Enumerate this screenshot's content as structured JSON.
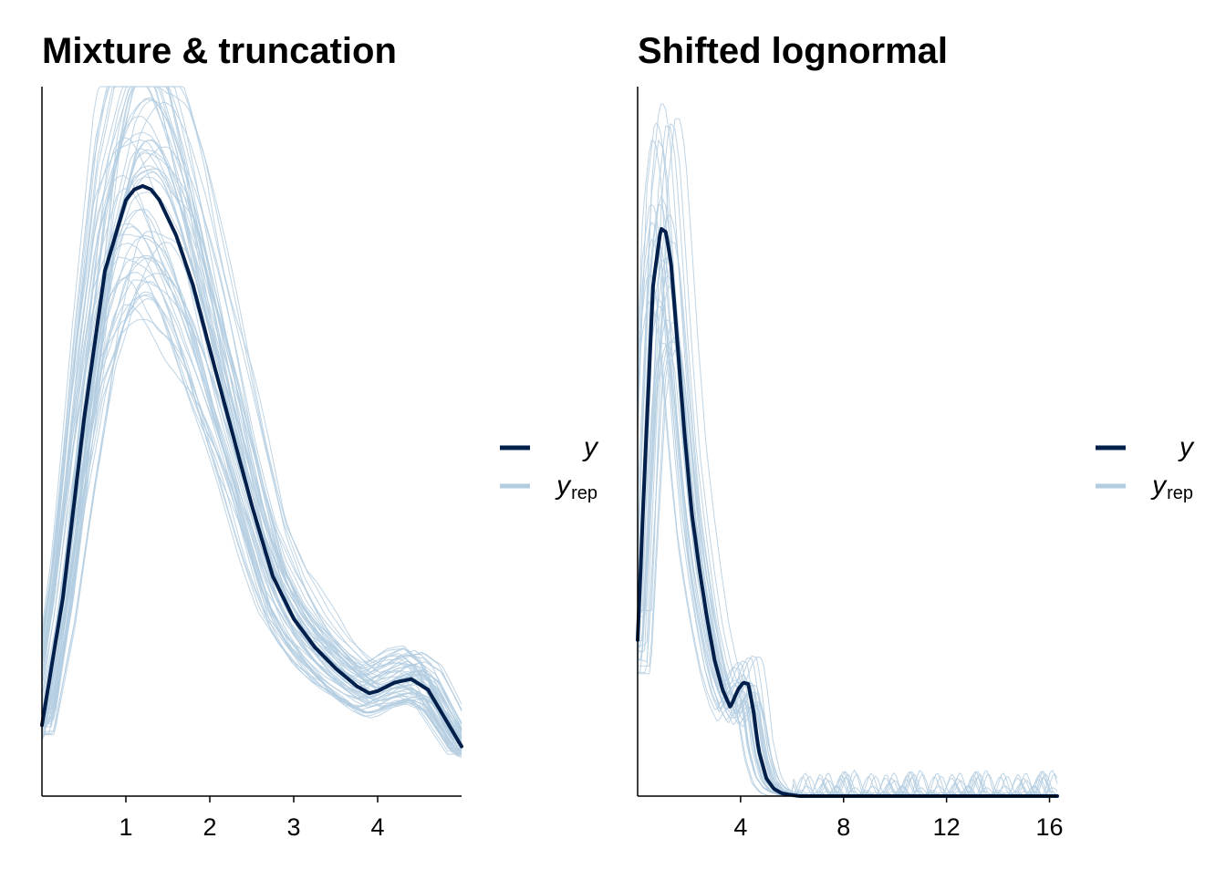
{
  "colors": {
    "y": "#011f4b",
    "yrep": "#b3cde0",
    "axis": "#000000",
    "background": "#ffffff"
  },
  "legend": {
    "entries": [
      {
        "key": "y",
        "label": "y",
        "subscript": "",
        "color": "#011f4b"
      },
      {
        "key": "yrep",
        "label": "y",
        "subscript": "rep",
        "color": "#b3cde0"
      }
    ]
  },
  "chart_data": [
    {
      "type": "line",
      "title": "Mixture & truncation",
      "xlabel": "",
      "ylabel": "",
      "xlim": [
        0,
        5
      ],
      "ylim": [
        0,
        1
      ],
      "y_axis_ticks": "none",
      "xticks": [
        1,
        2,
        3,
        4
      ],
      "grid": false,
      "legend_position": "right",
      "series": [
        {
          "key": "y",
          "x": [
            0,
            0.25,
            0.5,
            0.75,
            1.0,
            1.1,
            1.2,
            1.3,
            1.4,
            1.6,
            1.8,
            2.0,
            2.25,
            2.5,
            2.75,
            3.0,
            3.25,
            3.5,
            3.75,
            3.9,
            4.0,
            4.2,
            4.4,
            4.6,
            4.8,
            5.0
          ],
          "values": [
            0.1,
            0.28,
            0.53,
            0.74,
            0.84,
            0.855,
            0.86,
            0.855,
            0.84,
            0.79,
            0.72,
            0.63,
            0.52,
            0.41,
            0.31,
            0.25,
            0.21,
            0.18,
            0.155,
            0.145,
            0.148,
            0.16,
            0.165,
            0.15,
            0.11,
            0.07
          ]
        }
      ],
      "replicates": {
        "count": 60,
        "seed": 7,
        "color": "#b3cde0"
      }
    },
    {
      "type": "line",
      "title": "Shifted lognormal",
      "xlabel": "",
      "ylabel": "",
      "xlim": [
        0,
        16.3
      ],
      "ylim": [
        0,
        1
      ],
      "y_axis_ticks": "none",
      "xticks": [
        4,
        8,
        12,
        16
      ],
      "grid": false,
      "legend_position": "right",
      "series": [
        {
          "key": "y",
          "x": [
            0,
            0.3,
            0.6,
            0.9,
            1.1,
            1.3,
            1.5,
            1.8,
            2.1,
            2.4,
            2.7,
            3.0,
            3.3,
            3.6,
            3.9,
            4.1,
            4.3,
            4.5,
            4.7,
            5.0,
            5.3,
            5.6,
            5.9,
            6.3,
            8,
            12,
            16.3
          ],
          "values": [
            0.22,
            0.48,
            0.72,
            0.8,
            0.795,
            0.75,
            0.66,
            0.52,
            0.4,
            0.32,
            0.25,
            0.19,
            0.15,
            0.125,
            0.15,
            0.16,
            0.158,
            0.12,
            0.065,
            0.025,
            0.01,
            0.004,
            0.002,
            0,
            0,
            0,
            0
          ]
        }
      ],
      "replicates": {
        "count": 30,
        "seed": 19,
        "color": "#b3cde0"
      }
    }
  ]
}
